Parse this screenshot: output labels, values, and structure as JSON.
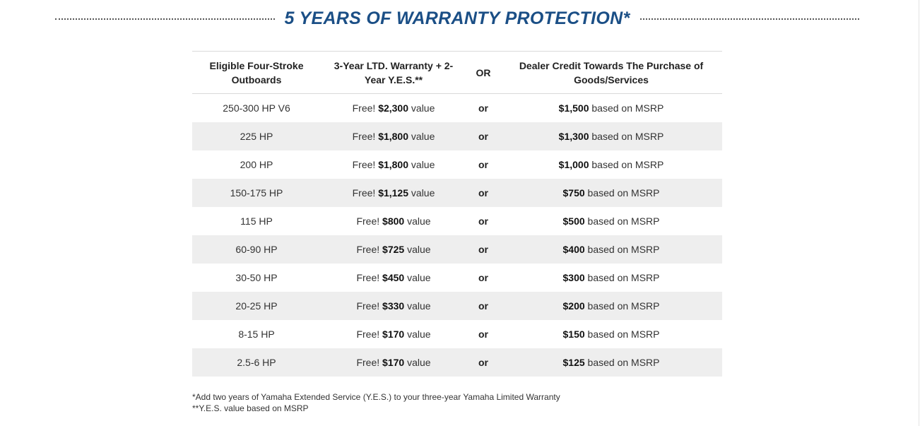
{
  "heading": "5 YEARS OF WARRANTY PROTECTION*",
  "table": {
    "headers": {
      "outboards": "Eligible Four-Stroke Outboards",
      "warranty": "3-Year LTD. Warranty + 2-Year Y.E.S.**",
      "or": "OR",
      "credit": "Dealer Credit Towards The Purchase of Goods/Services"
    },
    "rows": [
      {
        "hp": "250-300 HP V6",
        "free": "Free!",
        "value": "$2,300",
        "value_suffix": "value",
        "or": "or",
        "credit": "$1,500",
        "credit_suffix": "based on MSRP"
      },
      {
        "hp": "225 HP",
        "free": "Free!",
        "value": "$1,800",
        "value_suffix": "value",
        "or": "or",
        "credit": "$1,300",
        "credit_suffix": "based on MSRP"
      },
      {
        "hp": "200 HP",
        "free": "Free!",
        "value": "$1,800",
        "value_suffix": "value",
        "or": "or",
        "credit": "$1,000",
        "credit_suffix": "based on MSRP"
      },
      {
        "hp": "150-175 HP",
        "free": "Free!",
        "value": "$1,125",
        "value_suffix": "value",
        "or": "or",
        "credit": "$750",
        "credit_suffix": "based on MSRP"
      },
      {
        "hp": "115 HP",
        "free": "Free!",
        "value": "$800",
        "value_suffix": "value",
        "or": "or",
        "credit": "$500",
        "credit_suffix": "based on MSRP"
      },
      {
        "hp": "60-90 HP",
        "free": "Free!",
        "value": "$725",
        "value_suffix": "value",
        "or": "or",
        "credit": "$400",
        "credit_suffix": "based on MSRP"
      },
      {
        "hp": "30-50 HP",
        "free": "Free!",
        "value": "$450",
        "value_suffix": "value",
        "or": "or",
        "credit": "$300",
        "credit_suffix": "based on MSRP"
      },
      {
        "hp": "20-25 HP",
        "free": "Free!",
        "value": "$330",
        "value_suffix": "value",
        "or": "or",
        "credit": "$200",
        "credit_suffix": "based on MSRP"
      },
      {
        "hp": "8-15 HP",
        "free": "Free!",
        "value": "$170",
        "value_suffix": "value",
        "or": "or",
        "credit": "$150",
        "credit_suffix": "based on MSRP"
      },
      {
        "hp": "2.5-6 HP",
        "free": "Free!",
        "value": "$170",
        "value_suffix": "value",
        "or": "or",
        "credit": "$125",
        "credit_suffix": "based on MSRP"
      }
    ]
  },
  "footnotes": [
    "*Add two years of Yamaha Extended Service (Y.E.S.) to your three-year Yamaha Limited Warranty",
    "**Y.E.S. value based on MSRP"
  ],
  "colors": {
    "heading": "#1b4f86",
    "row_alt": "#eeeeee"
  }
}
